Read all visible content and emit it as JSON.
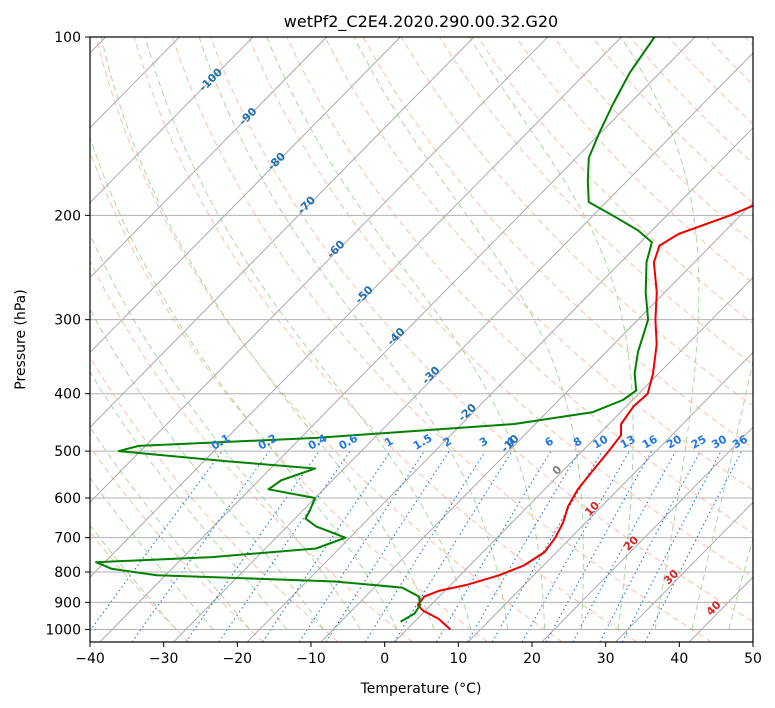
{
  "chart_data": {
    "type": "skew-t log-p diagram",
    "title": "wetPf2_C2E4.2020.290.00.32.G20",
    "xlabel": "Temperature (°C)",
    "ylabel": "Pressure (hPa)",
    "xlim": [
      -40,
      50
    ],
    "ylim": [
      1050,
      100
    ],
    "y_scale": "log",
    "grid": true,
    "x_ticks": [
      -40,
      -30,
      -20,
      -10,
      0,
      10,
      20,
      30,
      40,
      50
    ],
    "x_tick_labels": [
      "−40",
      "−30",
      "−20",
      "−10",
      "0",
      "10",
      "20",
      "30",
      "40",
      "50"
    ],
    "y_ticks": [
      100,
      200,
      300,
      400,
      500,
      600,
      700,
      800,
      900,
      1000
    ],
    "y_tick_labels": [
      "100",
      "200",
      "300",
      "400",
      "500",
      "600",
      "700",
      "800",
      "900",
      "1000"
    ],
    "colors": {
      "temperature": "#ee0000",
      "dewpoint": "#008000",
      "isotherm": "#aaaaaa",
      "dry_adiabat": "#ffb09a",
      "moist_adiabat": "#a8d8a0",
      "mixing_ratio": "#1f77e4",
      "isotherm_label_cold": "#1f6fb0",
      "isotherm_label_warm": "#d62728",
      "isotherm_label_zero": "#808080"
    },
    "isotherm_labels": [
      {
        "value": -100,
        "text": "-100",
        "p": 118
      },
      {
        "value": -90,
        "text": "-90",
        "p": 136
      },
      {
        "value": -80,
        "text": "-80",
        "p": 162
      },
      {
        "value": -70,
        "text": "-70",
        "p": 192
      },
      {
        "value": -60,
        "text": "-60",
        "p": 228
      },
      {
        "value": -50,
        "text": "-50",
        "p": 272
      },
      {
        "value": -40,
        "text": "-40",
        "p": 320
      },
      {
        "value": -30,
        "text": "-30",
        "p": 372
      },
      {
        "value": -20,
        "text": "-20",
        "p": 430
      },
      {
        "value": -10,
        "text": "-10",
        "p": 485
      },
      {
        "value": 0,
        "text": "0",
        "p": 538
      },
      {
        "value": 10,
        "text": "10",
        "p": 625
      },
      {
        "value": 20,
        "text": "20",
        "p": 715
      },
      {
        "value": 30,
        "text": "30",
        "p": 815
      },
      {
        "value": 40,
        "text": "40",
        "p": 920
      }
    ],
    "mixing_ratio_labels": [
      "0.1",
      "0.2",
      "0.4",
      "0.6",
      "1",
      "1.5",
      "2",
      "3",
      "4",
      "6",
      "8",
      "10",
      "13",
      "16",
      "20",
      "25",
      "30",
      "36"
    ],
    "mixing_ratio_values": [
      0.1,
      0.2,
      0.4,
      0.6,
      1,
      1.5,
      2,
      3,
      4,
      6,
      8,
      10,
      13,
      16,
      20,
      25,
      30,
      36
    ],
    "series": [
      {
        "name": "",
        "role": "temperature",
        "points": [
          {
            "p": 1000,
            "t": 7.2
          },
          {
            "p": 960,
            "t": 4.2
          },
          {
            "p": 930,
            "t": 1.0
          },
          {
            "p": 910,
            "t": -0.5
          },
          {
            "p": 880,
            "t": -0.8
          },
          {
            "p": 860,
            "t": 0.5
          },
          {
            "p": 840,
            "t": 3.5
          },
          {
            "p": 810,
            "t": 6.5
          },
          {
            "p": 780,
            "t": 8.5
          },
          {
            "p": 740,
            "t": 9.5
          },
          {
            "p": 700,
            "t": 9.0
          },
          {
            "p": 660,
            "t": 8.0
          },
          {
            "p": 620,
            "t": 6.5
          },
          {
            "p": 580,
            "t": 5.5
          },
          {
            "p": 540,
            "t": 5.0
          },
          {
            "p": 500,
            "t": 4.5
          },
          {
            "p": 470,
            "t": 4.0
          },
          {
            "p": 450,
            "t": 2.5
          },
          {
            "p": 420,
            "t": 1.8
          },
          {
            "p": 400,
            "t": 2.0
          },
          {
            "p": 370,
            "t": 0.0
          },
          {
            "p": 330,
            "t": -3.5
          },
          {
            "p": 300,
            "t": -7.0
          },
          {
            "p": 270,
            "t": -10.5
          },
          {
            "p": 240,
            "t": -15.0
          },
          {
            "p": 225,
            "t": -16.5
          },
          {
            "p": 215,
            "t": -15.5
          },
          {
            "p": 200,
            "t": -11.0
          },
          {
            "p": 180,
            "t": -6.0
          },
          {
            "p": 160,
            "t": -3.0
          },
          {
            "p": 140,
            "t": -3.5
          },
          {
            "p": 120,
            "t": -7.0
          },
          {
            "p": 100,
            "t": -12.0
          }
        ]
      },
      {
        "name": "",
        "role": "dewpoint",
        "points": [
          {
            "p": 970,
            "t": -0.6
          },
          {
            "p": 940,
            "t": 0.2
          },
          {
            "p": 910,
            "t": -0.2
          },
          {
            "p": 880,
            "t": -1.5
          },
          {
            "p": 850,
            "t": -5.0
          },
          {
            "p": 830,
            "t": -15.0
          },
          {
            "p": 810,
            "t": -40.0
          },
          {
            "p": 790,
            "t": -47.0
          },
          {
            "p": 770,
            "t": -50.0
          },
          {
            "p": 755,
            "t": -35.0
          },
          {
            "p": 730,
            "t": -22.0
          },
          {
            "p": 700,
            "t": -19.5
          },
          {
            "p": 670,
            "t": -25.0
          },
          {
            "p": 650,
            "t": -27.5
          },
          {
            "p": 630,
            "t": -28.0
          },
          {
            "p": 600,
            "t": -29.0
          },
          {
            "p": 580,
            "t": -36.5
          },
          {
            "p": 560,
            "t": -36.0
          },
          {
            "p": 535,
            "t": -33.0
          },
          {
            "p": 520,
            "t": -46.0
          },
          {
            "p": 500,
            "t": -62.0
          },
          {
            "p": 490,
            "t": -60.0
          },
          {
            "p": 475,
            "t": -37.0
          },
          {
            "p": 450,
            "t": -12.0
          },
          {
            "p": 430,
            "t": -3.0
          },
          {
            "p": 410,
            "t": -0.5
          },
          {
            "p": 395,
            "t": 0.0
          },
          {
            "p": 370,
            "t": -2.5
          },
          {
            "p": 340,
            "t": -5.0
          },
          {
            "p": 300,
            "t": -8.0
          },
          {
            "p": 270,
            "t": -12.0
          },
          {
            "p": 240,
            "t": -16.0
          },
          {
            "p": 222,
            "t": -18.0
          },
          {
            "p": 212,
            "t": -21.5
          },
          {
            "p": 200,
            "t": -27.0
          },
          {
            "p": 190,
            "t": -32.0
          },
          {
            "p": 175,
            "t": -35.0
          },
          {
            "p": 160,
            "t": -38.0
          },
          {
            "p": 145,
            "t": -40.0
          },
          {
            "p": 130,
            "t": -42.0
          },
          {
            "p": 115,
            "t": -44.0
          },
          {
            "p": 100,
            "t": -45.5
          }
        ]
      }
    ]
  }
}
